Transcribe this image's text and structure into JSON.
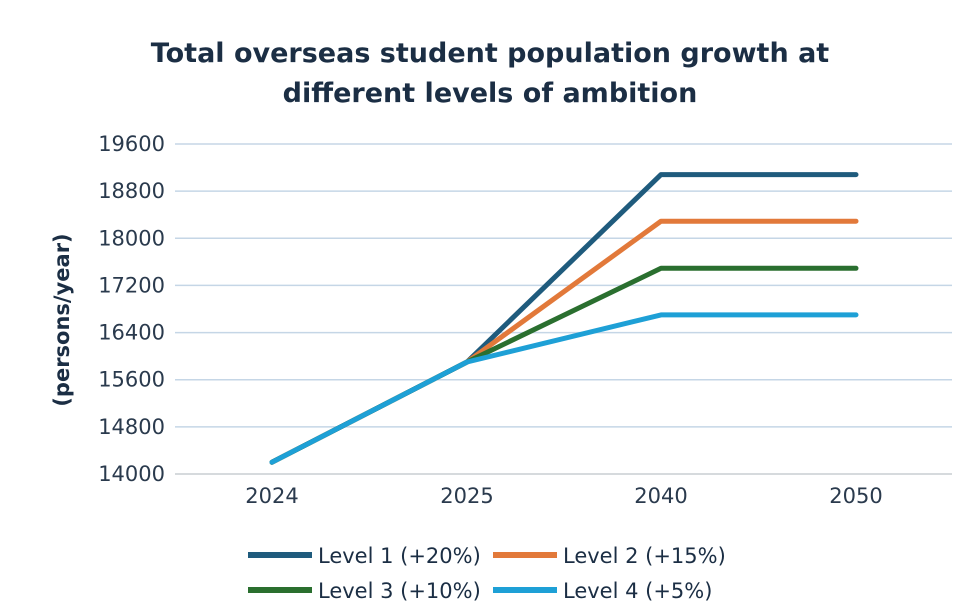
{
  "chart_data": {
    "type": "line",
    "title_lines": [
      "Total overseas student population growth at",
      "different levels of ambition"
    ],
    "xlabel": "",
    "ylabel": "(persons/year)",
    "categories": [
      "2024",
      "2025",
      "2040",
      "2050"
    ],
    "ylim": [
      14000,
      19600
    ],
    "yticks": [
      14000,
      14800,
      15600,
      16400,
      17200,
      18000,
      18800,
      19600
    ],
    "grid": true,
    "legend_position": "bottom",
    "series": [
      {
        "name": "Level 1 (+20%)",
        "color": "#1f5b7d",
        "values": [
          14200,
          15900,
          19080,
          19080
        ]
      },
      {
        "name": "Level 2 (+15%)",
        "color": "#e2793a",
        "values": [
          14200,
          15900,
          18290,
          18290
        ]
      },
      {
        "name": "Level 3 (+10%)",
        "color": "#2a6f2f",
        "values": [
          14200,
          15900,
          17490,
          17490
        ]
      },
      {
        "name": "Level 4 (+5%)",
        "color": "#1ea0d6",
        "values": [
          14200,
          15900,
          16700,
          16700
        ]
      }
    ]
  }
}
